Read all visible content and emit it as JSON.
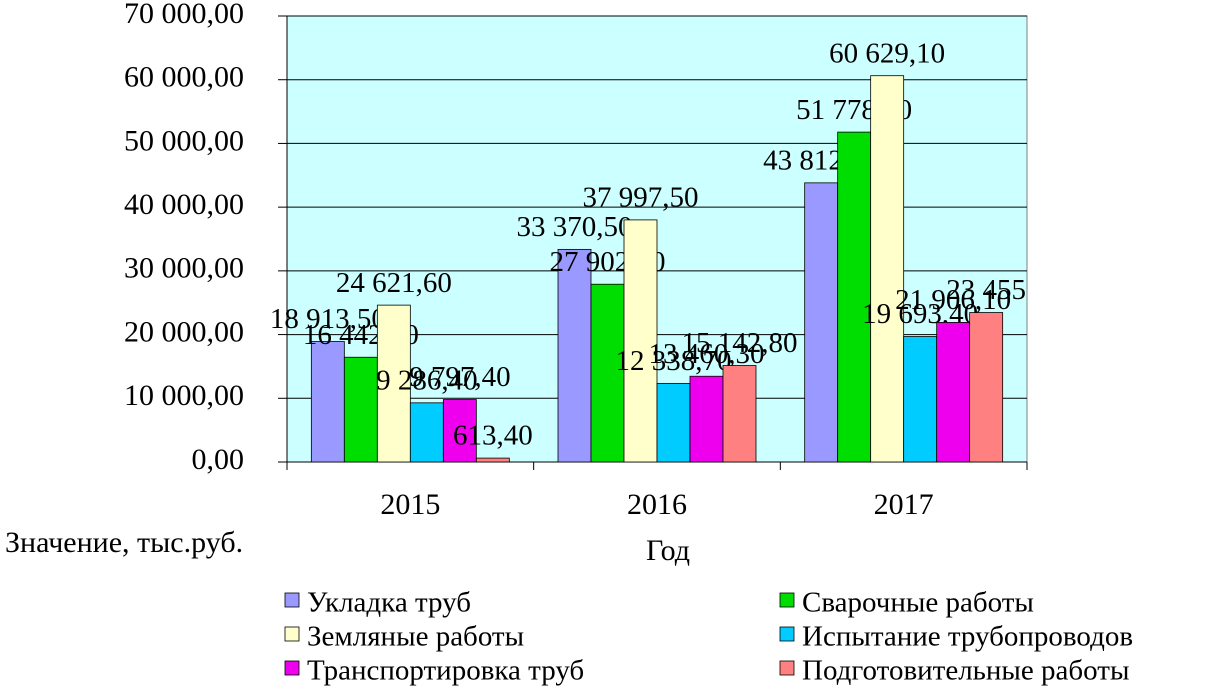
{
  "chart_data": {
    "type": "bar",
    "x_label": "Год",
    "y_label": "Значение, тыс.руб.",
    "categories": [
      "2015",
      "2016",
      "2017"
    ],
    "series": [
      {
        "name": "Укладка труб",
        "color": "#9999ff",
        "values": [
          18913.5,
          33370.5,
          43812.3
        ],
        "value_labels": [
          "18 913,50",
          "33 370,50",
          "43 812,30"
        ]
      },
      {
        "name": "Сварочные работы",
        "color": "#00dd00",
        "values": [
          16442.7,
          27902.2,
          51778.1
        ],
        "value_labels": [
          "16 442,70",
          "27 902,20",
          "51 778,10"
        ]
      },
      {
        "name": "Земляные работы",
        "color": "#ffffcc",
        "values": [
          24621.6,
          37997.5,
          60629.1
        ],
        "value_labels": [
          "24 621,60",
          "37 997,50",
          "60 629,10"
        ]
      },
      {
        "name": "Испытание трубопроводов",
        "color": "#00ccff",
        "values": [
          9286.4,
          12338.7,
          19693.4
        ],
        "value_labels": [
          "9 286,40",
          "12 338,70",
          "19 693,40"
        ]
      },
      {
        "name": "Транспортировка труб",
        "color": "#ee00ee",
        "values": [
          9797.4,
          13460.3,
          21906.1
        ],
        "value_labels": [
          "9 797,40",
          "13 460,30",
          "21 906,10"
        ]
      },
      {
        "name": "Подготовительные работы",
        "color": "#ff8080",
        "values": [
          613.4,
          15142.8,
          23455
        ],
        "value_labels": [
          "613,40",
          "15 142,80",
          "23 455"
        ]
      }
    ],
    "ylim": [
      0,
      70000
    ],
    "yticks": [
      {
        "value": 0,
        "label": "0,00"
      },
      {
        "value": 10000,
        "label": "10 000,00"
      },
      {
        "value": 20000,
        "label": "20 000,00"
      },
      {
        "value": 30000,
        "label": "30 000,00"
      },
      {
        "value": 40000,
        "label": "40 000,00"
      },
      {
        "value": 50000,
        "label": "50 000,00"
      },
      {
        "value": 60000,
        "label": "60 000,00"
      },
      {
        "value": 70000,
        "label": "70 000,00"
      }
    ],
    "grid": true,
    "plot_background": "#ccffff"
  }
}
